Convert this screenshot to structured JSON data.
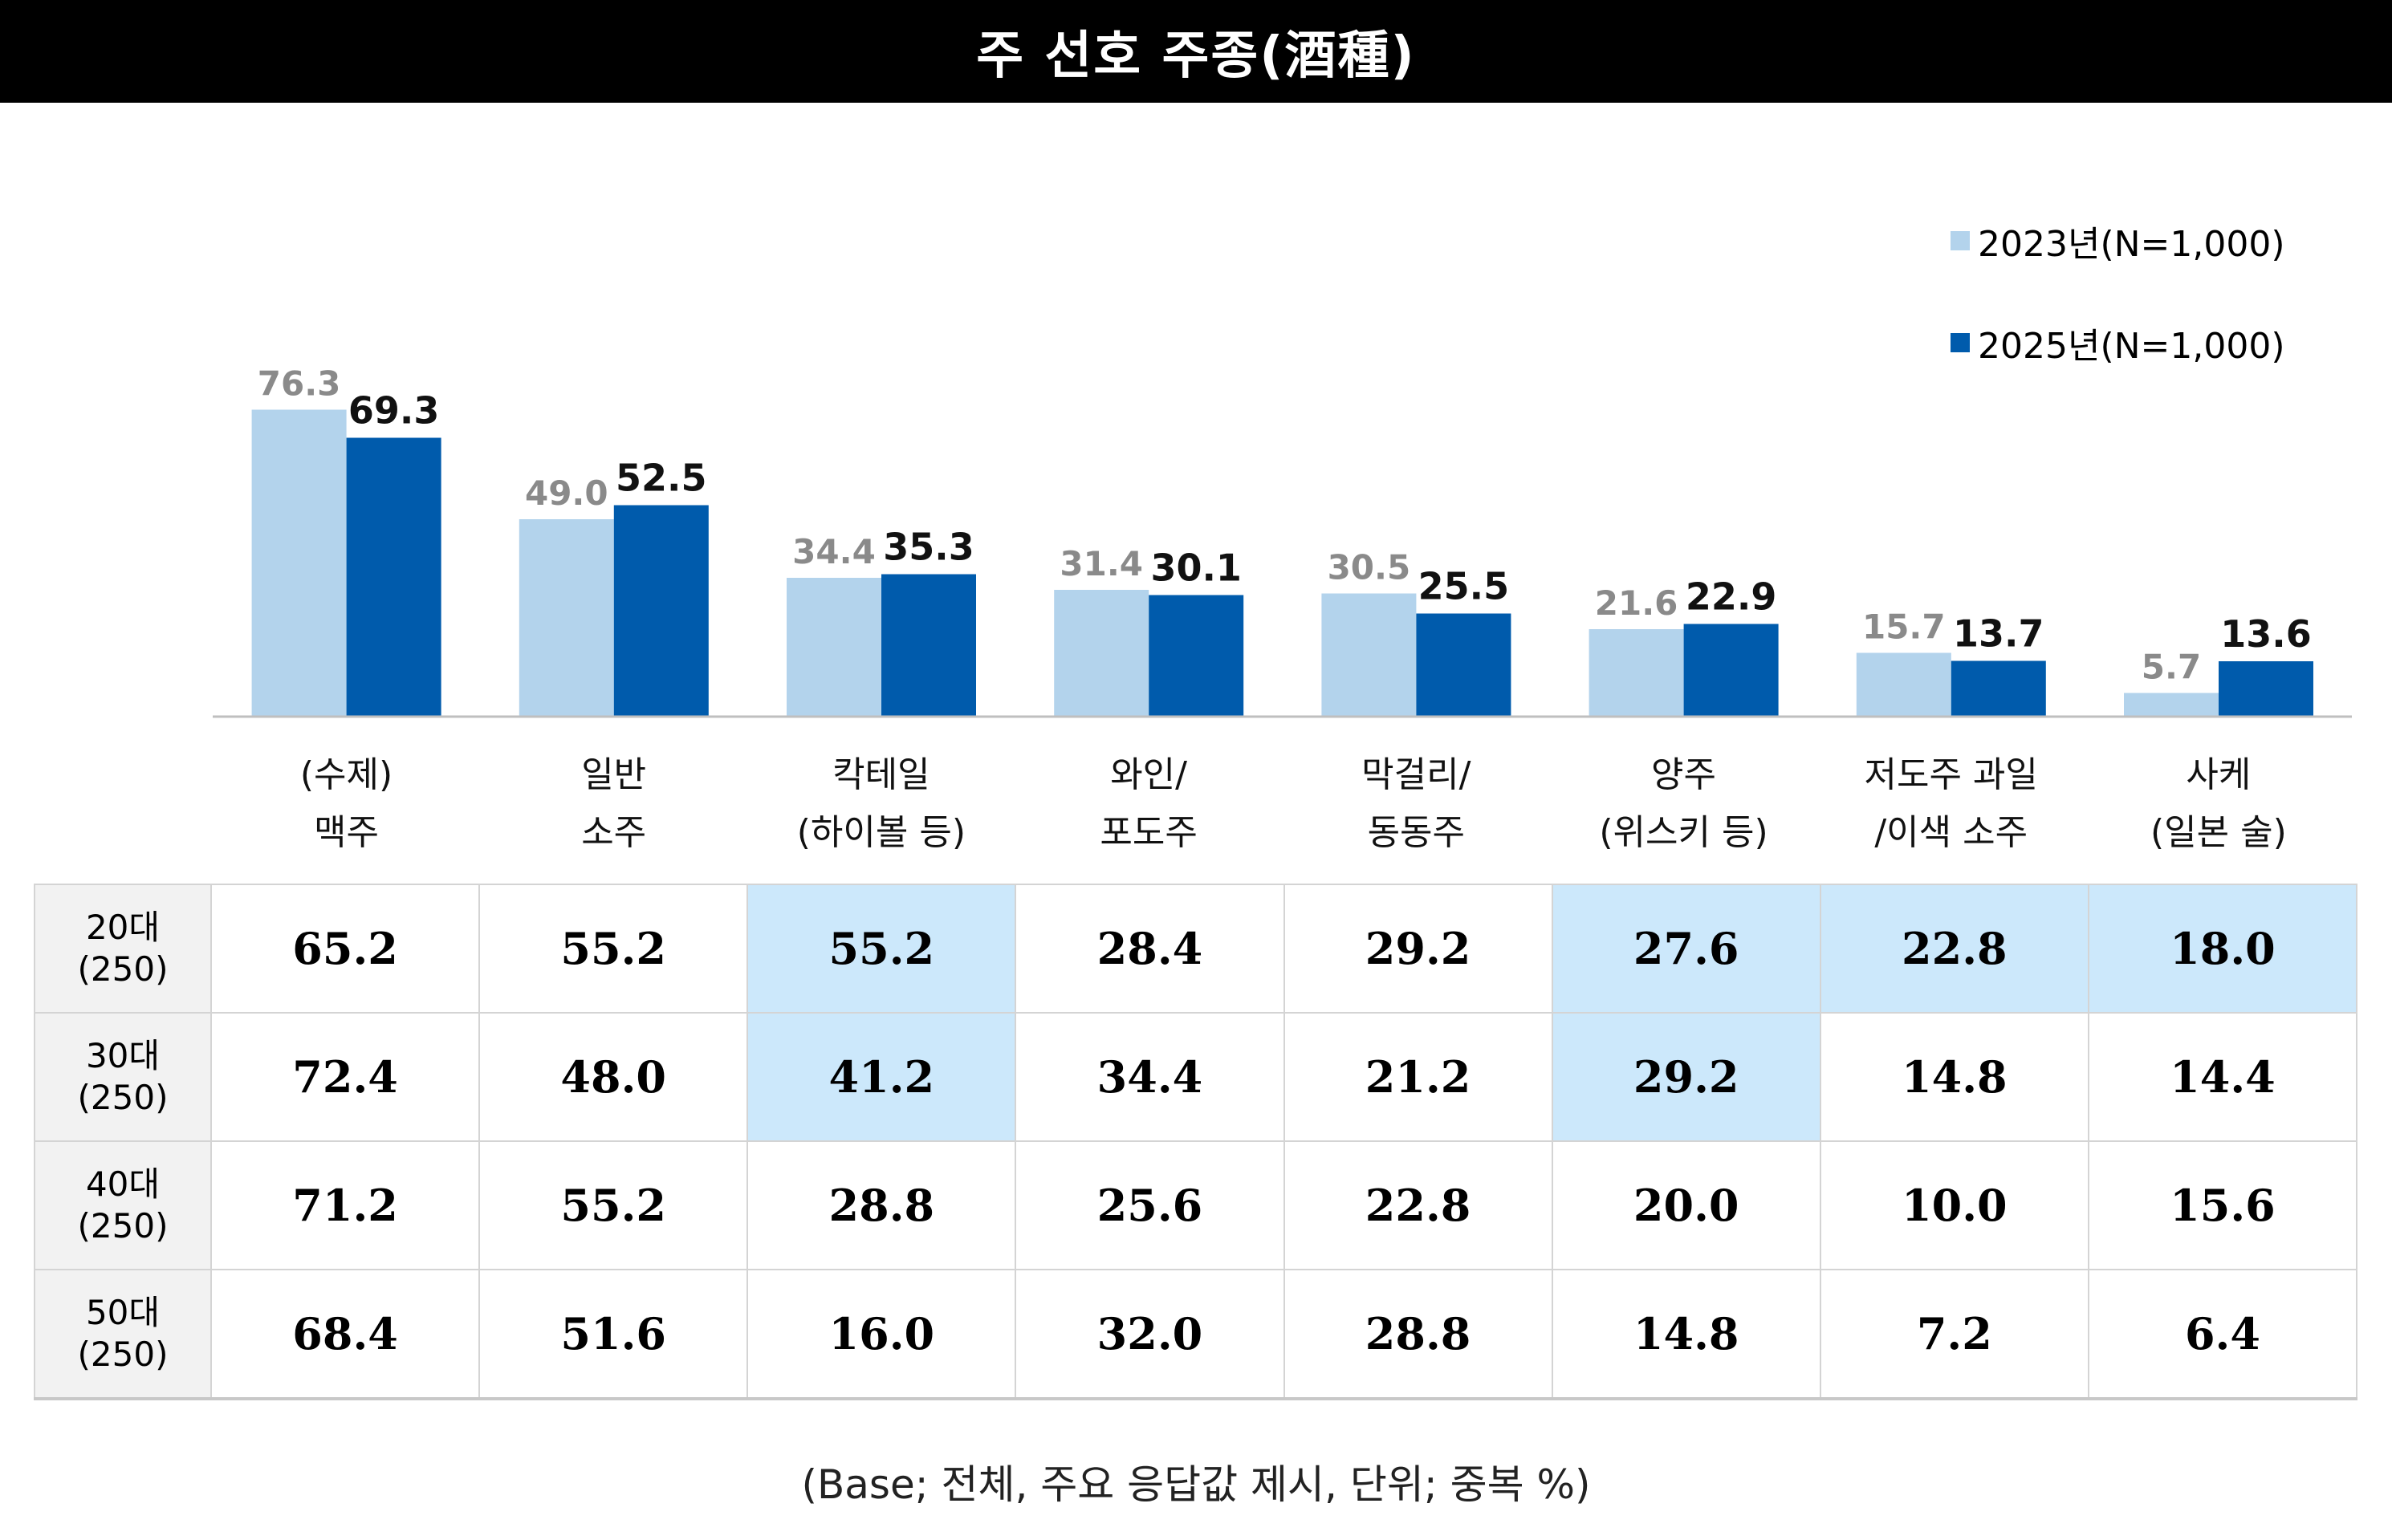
{
  "title": "주 선호 주종(酒種)",
  "legend": [
    {
      "label": "2023년(N=1,000)",
      "color": "#b3d3ec"
    },
    {
      "label": "2025년(N=1,000)",
      "color": "#005bac"
    }
  ],
  "chart_data": {
    "type": "bar",
    "categories": [
      [
        "(수제)",
        "맥주"
      ],
      [
        "일반",
        "소주"
      ],
      [
        "칵테일",
        "(하이볼 등)"
      ],
      [
        "와인/",
        "포도주"
      ],
      [
        "막걸리/",
        "동동주"
      ],
      [
        "양주",
        "(위스키 등)"
      ],
      [
        "저도주 과일",
        "/이색 소주"
      ],
      [
        "사케",
        "(일본 술)"
      ]
    ],
    "series": [
      {
        "name": "2023년(N=1,000)",
        "color": "#b3d3ec",
        "values": [
          76.3,
          49.0,
          34.4,
          31.4,
          30.5,
          21.6,
          15.7,
          5.7
        ],
        "labels": [
          "76.3",
          "49.0",
          "34.4",
          "31.4",
          "30.5",
          "21.6",
          "15.7",
          "5.7"
        ]
      },
      {
        "name": "2025년(N=1,000)",
        "color": "#005bac",
        "values": [
          69.3,
          52.5,
          35.3,
          30.1,
          25.5,
          22.9,
          13.7,
          13.6
        ],
        "labels": [
          "69.3",
          "52.5",
          "35.3",
          "30.1",
          "25.5",
          "22.9",
          "13.7",
          "13.6"
        ]
      }
    ],
    "legend_position": "top-right",
    "grid": false
  },
  "table": {
    "rows": [
      {
        "label_lines": [
          "20대",
          "(250)"
        ],
        "values": [
          "65.2",
          "55.2",
          "55.2",
          "28.4",
          "29.2",
          "27.6",
          "22.8",
          "18.0"
        ],
        "highlight": [
          false,
          false,
          true,
          false,
          false,
          true,
          true,
          true
        ]
      },
      {
        "label_lines": [
          "30대",
          "(250)"
        ],
        "values": [
          "72.4",
          "48.0",
          "41.2",
          "34.4",
          "21.2",
          "29.2",
          "14.8",
          "14.4"
        ],
        "highlight": [
          false,
          false,
          true,
          false,
          false,
          true,
          false,
          false
        ]
      },
      {
        "label_lines": [
          "40대",
          "(250)"
        ],
        "values": [
          "71.2",
          "55.2",
          "28.8",
          "25.6",
          "22.8",
          "20.0",
          "10.0",
          "15.6"
        ],
        "highlight": [
          false,
          false,
          false,
          false,
          false,
          false,
          false,
          false
        ]
      },
      {
        "label_lines": [
          "50대",
          "(250)"
        ],
        "values": [
          "68.4",
          "51.6",
          "16.0",
          "32.0",
          "28.8",
          "14.8",
          "7.2",
          "6.4"
        ],
        "highlight": [
          false,
          false,
          false,
          false,
          false,
          false,
          false,
          false
        ]
      }
    ]
  },
  "footnote": "(Base; 전체, 주요 응답값 제시, 단위; 중복 %)"
}
